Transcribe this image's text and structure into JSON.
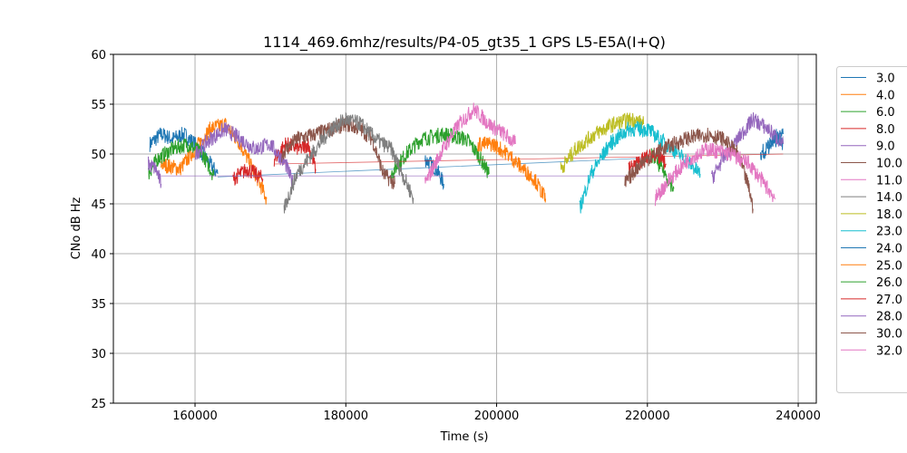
{
  "chart_data": {
    "type": "line",
    "title": "1114_469.6mhz/results/P4-05_gt35_1 GPS L5-E5A(I+Q)",
    "xlabel": "Time (s)",
    "ylabel": "CNo dB Hz",
    "xlim": [
      149170,
      242400
    ],
    "ylim": [
      25,
      60
    ],
    "xticks": [
      160000,
      180000,
      200000,
      220000,
      240000
    ],
    "yticks": [
      25,
      30,
      35,
      40,
      45,
      50,
      55,
      60
    ],
    "grid": true,
    "legend_placement": "right-outside",
    "series": [
      {
        "name": "3.0",
        "color": "#1f77b4",
        "segments": [
          [
            [
              154000,
              51
            ],
            [
              155500,
              52
            ],
            [
              157000,
              51.5
            ],
            [
              158500,
              52
            ],
            [
              160000,
              51
            ],
            [
              162000,
              49
            ],
            [
              163000,
              48
            ]
          ],
          [
            [
              163000,
              47.7
            ],
            [
              220000,
              49.6
            ]
          ],
          [
            [
              190500,
              49.5
            ],
            [
              192000,
              48.5
            ],
            [
              193000,
              47
            ]
          ],
          [
            [
              235000,
              50
            ],
            [
              236500,
              51
            ],
            [
              238000,
              52
            ]
          ]
        ]
      },
      {
        "name": "4.0",
        "color": "#ff7f0e",
        "segments": [
          [
            [
              155500,
              49
            ],
            [
              158000,
              48.5
            ],
            [
              160000,
              50.5
            ],
            [
              162000,
              52.5
            ],
            [
              164000,
              53
            ],
            [
              166000,
              51
            ],
            [
              168000,
              48
            ],
            [
              169500,
              45.5
            ]
          ]
        ]
      },
      {
        "name": "6.0",
        "color": "#2ca02c",
        "segments": [
          [
            [
              153800,
              48
            ],
            [
              155000,
              49.5
            ],
            [
              157000,
              50.5
            ],
            [
              159000,
              51
            ],
            [
              161000,
              50
            ],
            [
              162500,
              47.8
            ]
          ],
          [
            [
              186000,
              48
            ],
            [
              188000,
              50
            ],
            [
              190000,
              51.5
            ],
            [
              193000,
              52
            ],
            [
              196000,
              51.5
            ],
            [
              197500,
              50
            ],
            [
              199000,
              48
            ]
          ]
        ]
      },
      {
        "name": "8.0",
        "color": "#d62728",
        "segments": [
          [
            [
              165000,
              47.5
            ],
            [
              167000,
              48.5
            ],
            [
              169000,
              47.5
            ]
          ],
          [
            [
              170500,
              49.5
            ],
            [
              172000,
              51
            ],
            [
              174000,
              50.5
            ],
            [
              175000,
              51
            ],
            [
              176000,
              48.5
            ]
          ],
          [
            [
              170500,
              49
            ],
            [
              238000,
              50
            ]
          ]
        ]
      },
      {
        "name": "9.0",
        "color": "#9467bd",
        "segments": [
          [
            [
              153800,
              49
            ],
            [
              154800,
              48.5
            ],
            [
              155500,
              47
            ]
          ],
          [
            [
              155500,
              47.8
            ],
            [
              224000,
              47.8
            ]
          ],
          [
            [
              160000,
              50
            ],
            [
              162000,
              51.5
            ],
            [
              164000,
              52.5
            ],
            [
              166000,
              51.5
            ],
            [
              168000,
              50.5
            ],
            [
              170000,
              51
            ],
            [
              172000,
              49
            ],
            [
              173000,
              47
            ]
          ]
        ]
      },
      {
        "name": "10.0",
        "color": "#8c564b",
        "segments": [
          [
            [
              171500,
              50
            ],
            [
              173500,
              51.5
            ],
            [
              176000,
              52
            ],
            [
              178000,
              52.5
            ],
            [
              180000,
              53
            ],
            [
              182000,
              52.5
            ],
            [
              183500,
              51.5
            ],
            [
              185000,
              48
            ],
            [
              186500,
              47
            ]
          ]
        ]
      },
      {
        "name": "11.0",
        "color": "#e377c2",
        "segments": [
          [
            [
              190500,
              47
            ],
            [
              192500,
              50
            ],
            [
              195000,
              53
            ],
            [
              197000,
              54.5
            ],
            [
              199000,
              53
            ],
            [
              201000,
              52
            ],
            [
              202500,
              51
            ]
          ]
        ]
      },
      {
        "name": "14.0",
        "color": "#7f7f7f",
        "segments": [
          [
            [
              171800,
              44.5
            ],
            [
              173500,
              48
            ],
            [
              176000,
              50.5
            ],
            [
              178000,
              52.5
            ],
            [
              180000,
              53.5
            ],
            [
              182000,
              53
            ],
            [
              184000,
              51.5
            ],
            [
              186000,
              50.5
            ],
            [
              187500,
              48
            ],
            [
              189000,
              45.5
            ]
          ]
        ]
      },
      {
        "name": "18.0",
        "color": "#bcbd22",
        "segments": [
          [
            [
              208500,
              48.5
            ],
            [
              210500,
              50.5
            ],
            [
              213000,
              52
            ],
            [
              215500,
              53
            ],
            [
              218000,
              53.5
            ],
            [
              219500,
              53
            ]
          ]
        ]
      },
      {
        "name": "23.0",
        "color": "#17becf",
        "segments": [
          [
            [
              211000,
              44.5
            ],
            [
              212500,
              48
            ],
            [
              215000,
              51
            ],
            [
              217500,
              52.5
            ],
            [
              220000,
              52.5
            ],
            [
              222500,
              51
            ],
            [
              225000,
              49.5
            ],
            [
              227000,
              48
            ]
          ]
        ]
      },
      {
        "name": "24.0",
        "color": "#1f77b4",
        "segments": [
          [
            [
              236000,
              50.5
            ],
            [
              237000,
              52
            ],
            [
              238000,
              51
            ]
          ]
        ]
      },
      {
        "name": "25.0",
        "color": "#ff7f0e",
        "segments": [
          [
            [
              197500,
              51
            ],
            [
              199500,
              51
            ],
            [
              201500,
              50
            ],
            [
              203500,
              48.5
            ],
            [
              205000,
              47.5
            ],
            [
              206500,
              45.5
            ]
          ]
        ]
      },
      {
        "name": "26.0",
        "color": "#2ca02c",
        "segments": [
          [
            [
              220500,
              50
            ],
            [
              222000,
              48.5
            ],
            [
              223500,
              46.5
            ]
          ]
        ]
      },
      {
        "name": "27.0",
        "color": "#d62728",
        "segments": [
          [
            [
              217500,
              48.5
            ],
            [
              219500,
              49.5
            ],
            [
              221000,
              50
            ],
            [
              222500,
              49
            ]
          ]
        ]
      },
      {
        "name": "28.0",
        "color": "#9467bd",
        "segments": [
          [
            [
              228500,
              47.5
            ],
            [
              230000,
              49.5
            ],
            [
              232000,
              51.5
            ],
            [
              234000,
              53.5
            ],
            [
              236000,
              52.5
            ],
            [
              238000,
              51
            ]
          ]
        ]
      },
      {
        "name": "30.0",
        "color": "#8c564b",
        "segments": [
          [
            [
              217000,
              47
            ],
            [
              219000,
              49
            ],
            [
              222000,
              50.5
            ],
            [
              225000,
              51.5
            ],
            [
              228000,
              52
            ],
            [
              230000,
              51.5
            ],
            [
              232000,
              50
            ],
            [
              233500,
              46.5
            ],
            [
              234000,
              44.5
            ]
          ]
        ]
      },
      {
        "name": "32.0",
        "color": "#e377c2",
        "segments": [
          [
            [
              221000,
              45.5
            ],
            [
              223000,
              47.5
            ],
            [
              225500,
              49.5
            ],
            [
              228000,
              50.5
            ],
            [
              231000,
              50
            ],
            [
              233500,
              49
            ],
            [
              235500,
              47
            ],
            [
              237000,
              45.5
            ]
          ]
        ]
      }
    ]
  }
}
